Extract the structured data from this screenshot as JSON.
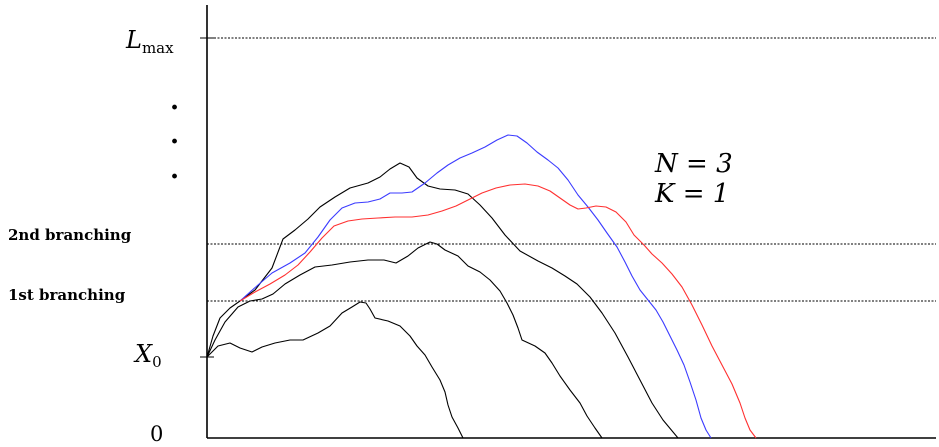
{
  "figure": {
    "axis_labels": {
      "lmax_main": "L",
      "lmax_sub": "max",
      "x0_main": "X",
      "x0_sub": "0",
      "zero": "0"
    },
    "level_labels": {
      "second": "2nd branching",
      "first": "1st branching"
    },
    "params": {
      "n": "N = 3",
      "k": "K = 1"
    },
    "vertical_dots": ".",
    "colors": {
      "black_paths": "#000000",
      "blue_path": "#3b3bff",
      "red_path": "#ff3030",
      "dashed_lines": "#000000"
    }
  }
}
